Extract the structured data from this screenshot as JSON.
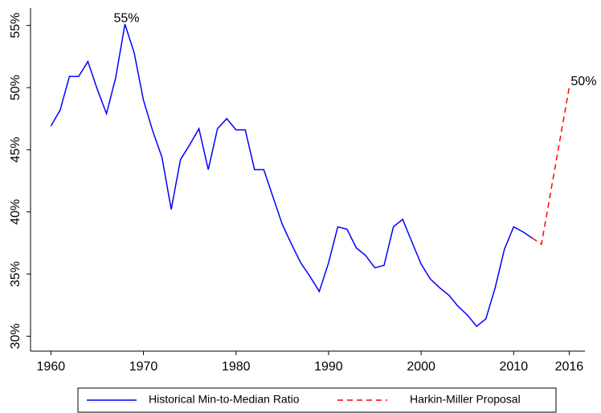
{
  "chart_data": {
    "type": "line",
    "xlim": [
      1957.8,
      2017.7
    ],
    "xticks": [
      1960,
      1970,
      1980,
      1990,
      2000,
      2010,
      2016
    ],
    "ylim": [
      28.8,
      56.4
    ],
    "yticks": [
      {
        "value": 30,
        "label": "30%"
      },
      {
        "value": 35,
        "label": "35%"
      },
      {
        "value": 40,
        "label": "40%"
      },
      {
        "value": 45,
        "label": "45%"
      },
      {
        "value": 50,
        "label": "50%"
      },
      {
        "value": 55,
        "label": "55%"
      }
    ],
    "grid": false,
    "legend": "bottom",
    "series": [
      {
        "name": "Historical Min-to-Median Ratio",
        "color": "#0000ff",
        "dashed": false,
        "x": [
          1960,
          1961,
          1962,
          1963,
          1964,
          1965,
          1966,
          1967,
          1968,
          1969,
          1970,
          1971,
          1972,
          1973,
          1974,
          1975,
          1976,
          1977,
          1978,
          1979,
          1980,
          1981,
          1982,
          1983,
          1984,
          1985,
          1986,
          1987,
          1988,
          1989,
          1990,
          1991,
          1992,
          1993,
          1994,
          1995,
          1996,
          1997,
          1998,
          1999,
          2000,
          2001,
          2002,
          2003,
          2004,
          2005,
          2006,
          2007,
          2008,
          2009,
          2010,
          2011,
          2012
        ],
        "values": [
          46.9,
          48.2,
          50.9,
          50.9,
          52.1,
          49.9,
          47.9,
          50.8,
          55.1,
          52.8,
          49.0,
          46.5,
          44.4,
          40.2,
          44.2,
          45.4,
          46.7,
          43.4,
          46.7,
          47.5,
          46.6,
          46.6,
          43.4,
          43.4,
          41.2,
          39.0,
          37.4,
          35.9,
          34.8,
          33.6,
          35.9,
          38.8,
          38.6,
          37.1,
          36.5,
          35.5,
          35.7,
          38.8,
          39.4,
          37.6,
          35.8,
          34.6,
          33.9,
          33.3,
          32.4,
          31.7,
          30.8,
          31.4,
          33.9,
          37.0,
          38.8,
          38.4,
          37.9
        ]
      },
      {
        "name": "Harkin-Miller Proposal",
        "color": "#ff0000",
        "dashed": true,
        "x": [
          2012,
          2013,
          2016
        ],
        "values": [
          37.9,
          37.4,
          50.0
        ]
      }
    ],
    "annotations": [
      {
        "text": "55%",
        "x": 1968,
        "y": 55.1
      },
      {
        "text": "50%",
        "x": 2016,
        "y": 50.0
      }
    ]
  }
}
